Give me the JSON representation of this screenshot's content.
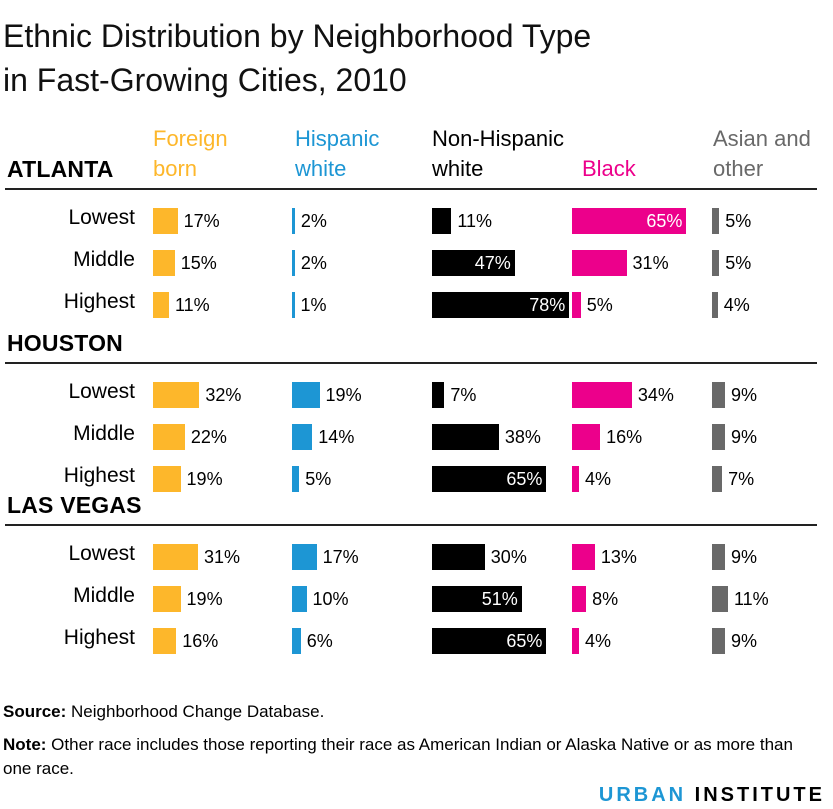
{
  "title_line1": "Ethnic Distribution by Neighborhood Type",
  "title_line2": "in Fast-Growing Cities, 2010",
  "headers": {
    "foreign_1": "Foreign",
    "foreign_2": "born",
    "hisp_1": "Hispanic",
    "hisp_2": "white",
    "nonhisp": "Non-Hispanic",
    "white": "white",
    "black": "Black",
    "asian_1": "Asian and",
    "asian_2": "other"
  },
  "colors": {
    "foreign": "#fdb72b",
    "hispanic": "#1d96d4",
    "white": "#000000",
    "black": "#ec008b",
    "asian": "#696969"
  },
  "footer": {
    "source_label": "Source:",
    "source_text": " Neighborhood Change Database.",
    "note_label": "Note:",
    "note_text": " Other race includes those reporting their race as American Indian or Alaska Native or as more than one race."
  },
  "brand": {
    "part1": "URBAN",
    "part2": "INSTITUTE"
  },
  "chart_data": {
    "type": "bar",
    "title": "Ethnic Distribution by Neighborhood Type in Fast-Growing Cities, 2010",
    "series_names": [
      "Foreign born",
      "Hispanic white",
      "Non-Hispanic white",
      "Black",
      "Asian and other"
    ],
    "unit": "%",
    "cities": [
      {
        "name": "ATLANTA",
        "rows": [
          {
            "label": "Lowest",
            "values": [
              17,
              2,
              11,
              65,
              5
            ]
          },
          {
            "label": "Middle",
            "values": [
              15,
              2,
              47,
              31,
              5
            ]
          },
          {
            "label": "Highest",
            "values": [
              11,
              1,
              78,
              5,
              4
            ]
          }
        ]
      },
      {
        "name": "HOUSTON",
        "rows": [
          {
            "label": "Lowest",
            "values": [
              32,
              19,
              7,
              34,
              9
            ]
          },
          {
            "label": "Middle",
            "values": [
              22,
              14,
              38,
              16,
              9
            ]
          },
          {
            "label": "Highest",
            "values": [
              19,
              5,
              65,
              4,
              7
            ]
          }
        ]
      },
      {
        "name": "LAS VEGAS",
        "rows": [
          {
            "label": "Lowest",
            "values": [
              31,
              17,
              30,
              13,
              9
            ]
          },
          {
            "label": "Middle",
            "values": [
              19,
              10,
              51,
              8,
              11
            ]
          },
          {
            "label": "Highest",
            "values": [
              16,
              6,
              65,
              4,
              9
            ]
          }
        ]
      }
    ]
  }
}
